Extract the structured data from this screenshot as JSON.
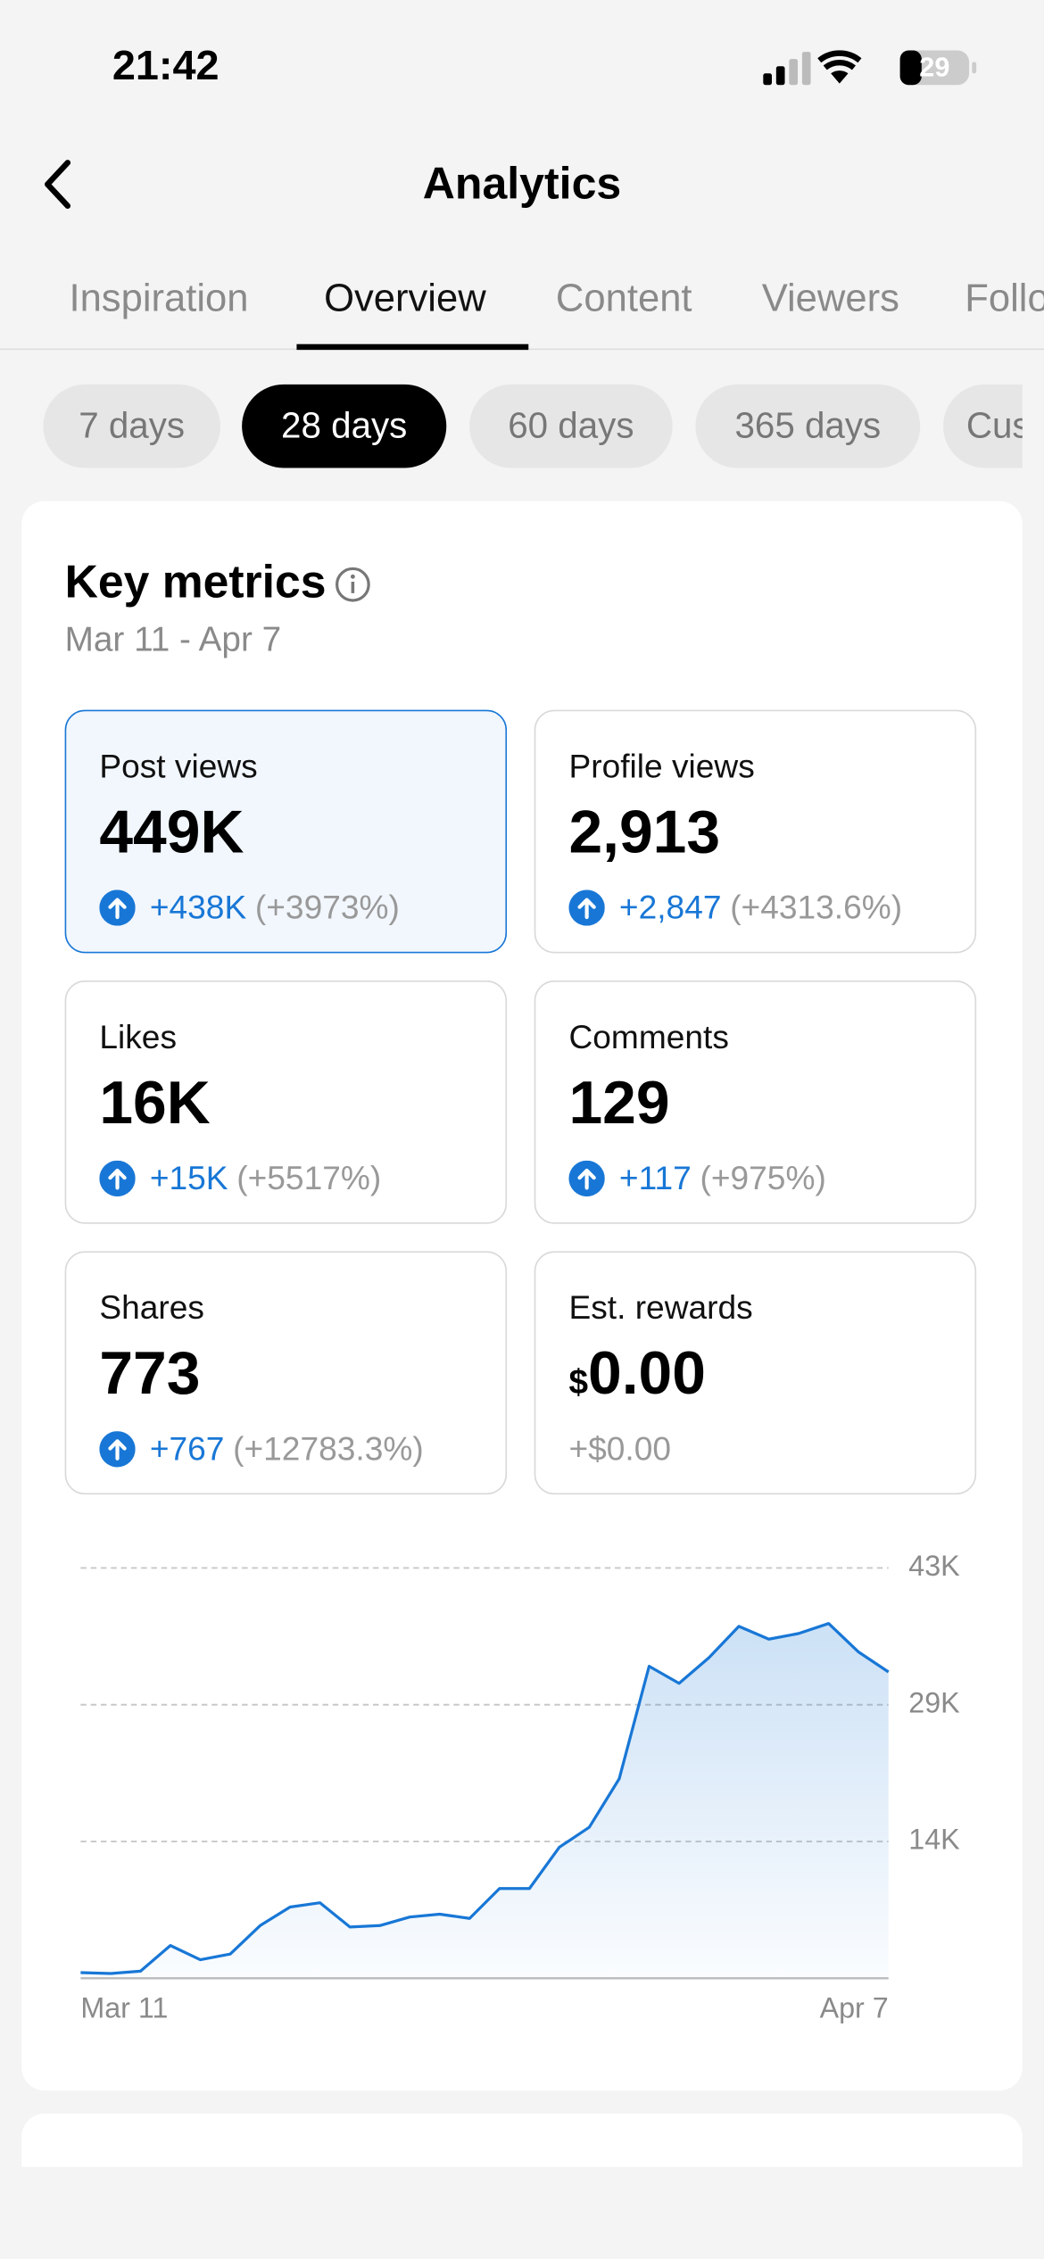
{
  "status_bar": {
    "time": "21:42",
    "battery": "29"
  },
  "header": {
    "title": "Analytics"
  },
  "tabs": [
    "Inspiration",
    "Overview",
    "Content",
    "Viewers",
    "Followers"
  ],
  "ranges": [
    "7 days",
    "28 days",
    "60 days",
    "365 days",
    "Custom"
  ],
  "key_metrics": {
    "title": "Key metrics",
    "date_range": "Mar 11 - Apr 7",
    "cards": [
      {
        "label": "Post views",
        "value": "449K",
        "change": "+438K",
        "percent": "(+3973%)",
        "trend": "up"
      },
      {
        "label": "Profile views",
        "value": "2,913",
        "change": "+2,847",
        "percent": "(+4313.6%)",
        "trend": "up"
      },
      {
        "label": "Likes",
        "value": "16K",
        "change": "+15K",
        "percent": "(+5517%)",
        "trend": "up"
      },
      {
        "label": "Comments",
        "value": "129",
        "change": "+117",
        "percent": "(+975%)",
        "trend": "up"
      },
      {
        "label": "Shares",
        "value": "773",
        "change": "+767",
        "percent": "(+12783.3%)",
        "trend": "up"
      },
      {
        "label": "Est. rewards",
        "currency": "$",
        "value": "0.00",
        "change": "+$0.00"
      }
    ]
  },
  "chart_data": {
    "type": "line",
    "categories": [
      "Mar 11",
      null,
      null,
      null,
      null,
      null,
      null,
      null,
      null,
      null,
      null,
      null,
      null,
      null,
      null,
      null,
      null,
      null,
      null,
      null,
      null,
      null,
      null,
      null,
      null,
      null,
      null,
      "Apr 7"
    ],
    "values": [
      600,
      500,
      750,
      3450,
      1950,
      2550,
      5550,
      7500,
      7950,
      5400,
      5550,
      6450,
      6750,
      6300,
      9450,
      9450,
      13800,
      15900,
      21000,
      32850,
      31050,
      33750,
      37050,
      35700,
      36300,
      37350,
      34350,
      32250
    ],
    "color": "#1877d6",
    "ylim": [
      0,
      43200
    ],
    "yticks": [
      {
        "value": 14400,
        "label": "14K"
      },
      {
        "value": 28800,
        "label": "29K"
      },
      {
        "value": 43200,
        "label": "43K"
      }
    ],
    "grid": true
  }
}
